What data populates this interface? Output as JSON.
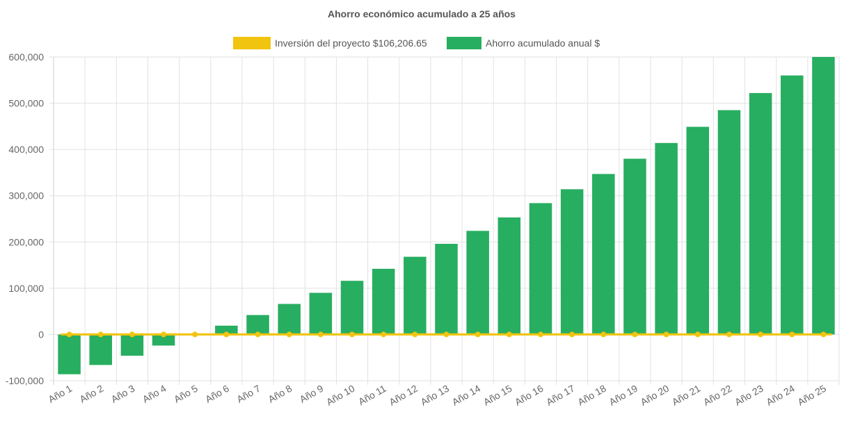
{
  "chart_data": {
    "type": "bar",
    "title": "Ahorro económico acumulado a 25 años",
    "xlabel": "",
    "ylabel": "",
    "ylim": [
      -100000,
      600000
    ],
    "yticks": [
      "600,000",
      "500,000",
      "400,000",
      "300,000",
      "200,000",
      "100,000",
      "0",
      "-100,000"
    ],
    "ytick_values": [
      600000,
      500000,
      400000,
      300000,
      200000,
      100000,
      0,
      -100000
    ],
    "grid": true,
    "legend_position": "top-center",
    "categories": [
      "Año 1",
      "Año 2",
      "Año 3",
      "Año 4",
      "Año 5",
      "Año 6",
      "Año 7",
      "Año 8",
      "Año 9",
      "Año 10",
      "Año 11",
      "Año 12",
      "Año 13",
      "Año 14",
      "Año 15",
      "Año 16",
      "Año 17",
      "Año 18",
      "Año 19",
      "Año 20",
      "Año 21",
      "Año 22",
      "Año 23",
      "Año 24",
      "Año 25"
    ],
    "series": [
      {
        "name": "Inversión del proyecto $106,206.65",
        "type": "line",
        "color": "#f1c40f",
        "values": [
          0,
          0,
          0,
          0,
          0,
          0,
          0,
          0,
          0,
          0,
          0,
          0,
          0,
          0,
          0,
          0,
          0,
          0,
          0,
          0,
          0,
          0,
          0,
          0,
          0
        ]
      },
      {
        "name": "Ahorro acumulado anual $",
        "type": "bar",
        "color": "#27ae60",
        "values": [
          -86000,
          -66000,
          -46000,
          -24000,
          -2000,
          19000,
          42000,
          66000,
          90000,
          116000,
          142000,
          168000,
          196000,
          224000,
          253000,
          284000,
          314000,
          347000,
          380000,
          414000,
          449000,
          485000,
          522000,
          560000,
          600000
        ]
      }
    ]
  }
}
